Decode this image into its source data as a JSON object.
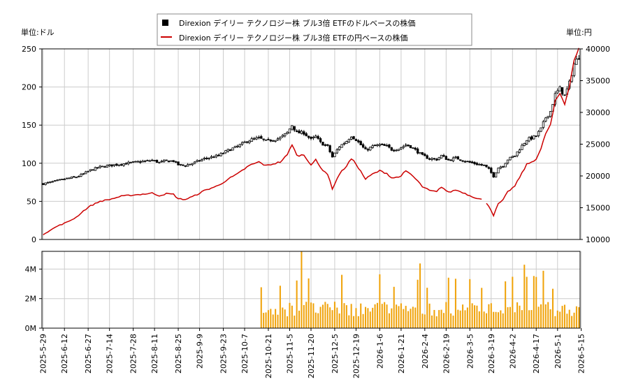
{
  "chart_data": {
    "type": "candlestick+line+volume",
    "legend": {
      "placement": "top-center",
      "usd_series": "Direxion デイリー テクノロジー株 ブル3倍 ETFのドルベースの株価",
      "jpy_series": "Direxion デイリー テクノロジー株 ブル3倍 ETFの円ベースの株価"
    },
    "left_axis": {
      "label": "単位:ドル",
      "ticks": [
        "0",
        "50",
        "100",
        "150",
        "200",
        "250"
      ],
      "range": [
        0,
        250
      ]
    },
    "right_axis": {
      "label": "単位:円",
      "ticks": [
        "10000",
        "15000",
        "20000",
        "25000",
        "30000",
        "35000",
        "40000"
      ],
      "range": [
        10000,
        40000
      ]
    },
    "volume_axis": {
      "ticks": [
        "0M",
        "2M",
        "4M"
      ],
      "range": [
        0,
        5200000
      ]
    },
    "x_ticks": [
      "2025-5-29",
      "2025-6-12",
      "2025-6-27",
      "2025-7-14",
      "2025-7-28",
      "2025-8-11",
      "2025-8-25",
      "2025-9-9",
      "2025-9-23",
      "2025-10-7",
      "2025-10-21",
      "2025-11-5",
      "2025-11-20",
      "2025-12-5",
      "2025-12-19",
      "2026-1-6",
      "2026-1-21",
      "2026-2-4",
      "2026-2-19",
      "2026-3-5",
      "2026-3-19",
      "2026-4-2",
      "2026-4-17",
      "2026-5-1",
      "2026-5-15"
    ],
    "grid": true,
    "usd_close_anchors": [
      [
        0,
        73
      ],
      [
        6,
        77
      ],
      [
        10,
        80
      ],
      [
        14,
        82
      ],
      [
        17,
        86
      ],
      [
        20,
        91
      ],
      [
        24,
        95
      ],
      [
        28,
        97
      ],
      [
        33,
        99
      ],
      [
        38,
        101
      ],
      [
        44,
        103
      ],
      [
        46,
        104
      ],
      [
        49,
        101
      ],
      [
        52,
        103
      ],
      [
        55,
        103
      ],
      [
        57,
        98
      ],
      [
        60,
        97
      ],
      [
        64,
        101
      ],
      [
        68,
        106
      ],
      [
        71,
        108
      ],
      [
        74,
        110
      ],
      [
        78,
        117
      ],
      [
        82,
        122
      ],
      [
        86,
        129
      ],
      [
        88,
        131
      ],
      [
        91,
        133
      ],
      [
        94,
        129
      ],
      [
        97,
        131
      ],
      [
        100,
        133
      ],
      [
        103,
        140
      ],
      [
        105,
        150
      ],
      [
        107,
        140
      ],
      [
        110,
        140
      ],
      [
        113,
        131
      ],
      [
        115,
        135
      ],
      [
        117,
        127
      ],
      [
        120,
        122
      ],
      [
        122,
        108
      ],
      [
        125,
        122
      ],
      [
        128,
        129
      ],
      [
        130,
        136
      ],
      [
        132,
        131
      ],
      [
        134,
        124
      ],
      [
        136,
        117
      ],
      [
        139,
        122
      ],
      [
        142,
        124
      ],
      [
        145,
        122
      ],
      [
        147,
        118
      ],
      [
        150,
        119
      ],
      [
        153,
        124
      ],
      [
        155,
        122
      ],
      [
        158,
        115
      ],
      [
        160,
        110
      ],
      [
        163,
        106
      ],
      [
        166,
        105
      ],
      [
        168,
        110
      ],
      [
        171,
        104
      ],
      [
        174,
        107
      ],
      [
        177,
        104
      ],
      [
        180,
        101
      ],
      [
        183,
        99
      ],
      [
        186,
        97
      ],
      [
        188,
        92
      ],
      [
        190,
        83
      ],
      [
        192,
        94
      ],
      [
        194,
        97
      ],
      [
        196,
        105
      ],
      [
        199,
        110
      ],
      [
        201,
        119
      ],
      [
        204,
        131
      ],
      [
        206,
        133
      ],
      [
        208,
        136
      ],
      [
        210,
        145
      ],
      [
        212,
        160
      ],
      [
        214,
        168
      ],
      [
        216,
        190
      ],
      [
        218,
        198
      ],
      [
        220,
        188
      ],
      [
        222,
        205
      ],
      [
        224,
        230
      ],
      [
        226,
        240
      ]
    ],
    "jpy_close_anchors": [
      [
        0,
        10800
      ],
      [
        6,
        12100
      ],
      [
        10,
        12700
      ],
      [
        14,
        13500
      ],
      [
        17,
        14500
      ],
      [
        20,
        15300
      ],
      [
        24,
        16000
      ],
      [
        28,
        16300
      ],
      [
        33,
        16800
      ],
      [
        38,
        17000
      ],
      [
        44,
        17200
      ],
      [
        46,
        17300
      ],
      [
        49,
        16900
      ],
      [
        52,
        17200
      ],
      [
        55,
        17100
      ],
      [
        57,
        16400
      ],
      [
        60,
        16300
      ],
      [
        64,
        16900
      ],
      [
        68,
        17700
      ],
      [
        71,
        18100
      ],
      [
        74,
        18500
      ],
      [
        78,
        19500
      ],
      [
        82,
        20300
      ],
      [
        86,
        21400
      ],
      [
        88,
        21800
      ],
      [
        91,
        22200
      ],
      [
        94,
        21600
      ],
      [
        97,
        21900
      ],
      [
        100,
        22200
      ],
      [
        103,
        23300
      ],
      [
        105,
        25000
      ],
      [
        107,
        23200
      ],
      [
        110,
        23300
      ],
      [
        113,
        21800
      ],
      [
        115,
        22500
      ],
      [
        117,
        21300
      ],
      [
        120,
        20300
      ],
      [
        122,
        18000
      ],
      [
        125,
        20300
      ],
      [
        128,
        21600
      ],
      [
        130,
        22700
      ],
      [
        132,
        21900
      ],
      [
        134,
        20700
      ],
      [
        136,
        19500
      ],
      [
        139,
        20300
      ],
      [
        142,
        20800
      ],
      [
        145,
        20400
      ],
      [
        147,
        19700
      ],
      [
        150,
        19800
      ],
      [
        153,
        20700
      ],
      [
        155,
        20300
      ],
      [
        158,
        19200
      ],
      [
        160,
        18300
      ],
      [
        163,
        17700
      ],
      [
        166,
        17500
      ],
      [
        168,
        18300
      ],
      [
        171,
        17400
      ],
      [
        174,
        17800
      ],
      [
        177,
        17400
      ],
      [
        180,
        16900
      ],
      [
        183,
        16500
      ],
      [
        186,
        16200
      ],
      [
        188,
        15300
      ],
      [
        190,
        13800
      ],
      [
        192,
        15600
      ],
      [
        194,
        16200
      ],
      [
        196,
        17500
      ],
      [
        199,
        18400
      ],
      [
        201,
        19800
      ],
      [
        204,
        21800
      ],
      [
        206,
        22200
      ],
      [
        208,
        22700
      ],
      [
        210,
        24200
      ],
      [
        212,
        26700
      ],
      [
        214,
        28000
      ],
      [
        216,
        31700
      ],
      [
        218,
        33000
      ],
      [
        220,
        31300
      ],
      [
        222,
        34200
      ],
      [
        224,
        38300
      ],
      [
        226,
        40000
      ]
    ],
    "jpy_gap_after": 185,
    "jpy_resume_at": 187,
    "volume_start_index": 92
  }
}
